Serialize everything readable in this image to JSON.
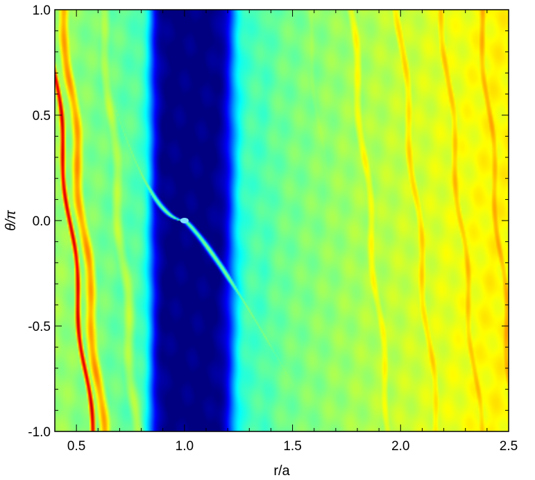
{
  "chart_data": {
    "type": "heatmap",
    "title": "",
    "xlabel": "r/a",
    "ylabel": "θ/π",
    "xlim": [
      0.4,
      2.5
    ],
    "ylim": [
      -1.0,
      1.0
    ],
    "x_ticks": [
      0.5,
      1.0,
      1.5,
      2.0,
      2.5
    ],
    "x_tick_labels": [
      "0.5",
      "1.0",
      "1.5",
      "2.0",
      "2.5"
    ],
    "y_ticks": [
      -1.0,
      -0.5,
      0.0,
      0.5,
      1.0
    ],
    "y_tick_labels": [
      "-1.0",
      "-0.5",
      "0.0",
      "0.5",
      "1.0"
    ],
    "colormap": "jet",
    "colors": {
      "min": "#00008c",
      "low": "#0a46e6",
      "mid": "#30d2f0",
      "high": "#b4f046",
      "max": "#e61e00"
    },
    "gap": {
      "r_inner": 0.85,
      "r_outer": 1.22,
      "level": 0.0
    },
    "planet": {
      "r": 1.0,
      "theta": 0.0
    },
    "background_level": 0.45,
    "features": [
      {
        "name": "inner-density-ridge",
        "r_at_theta0": 0.47,
        "dr_dtheta": -0.1,
        "level": 0.92
      },
      {
        "name": "inner-ridge-2",
        "r_at_theta0": 0.53,
        "dr_dtheta": -0.09,
        "level": 0.72
      },
      {
        "name": "inner-ridge-3",
        "r_at_theta0": 0.7,
        "dr_dtheta": -0.08,
        "level": 0.55
      },
      {
        "name": "outer-ridge-1",
        "r_at_theta0": 1.67,
        "dr_dtheta": -0.1,
        "level": 0.52
      },
      {
        "name": "outer-ridge-2",
        "r_at_theta0": 1.86,
        "dr_dtheta": -0.09,
        "level": 0.62
      },
      {
        "name": "outer-ridge-3",
        "r_at_theta0": 2.08,
        "dr_dtheta": -0.09,
        "level": 0.66
      },
      {
        "name": "outer-ridge-4",
        "r_at_theta0": 2.28,
        "dr_dtheta": -0.09,
        "level": 0.68
      },
      {
        "name": "outer-ridge-5",
        "r_at_theta0": 2.45,
        "dr_dtheta": -0.08,
        "level": 0.7
      }
    ],
    "spiral_wakes": [
      {
        "name": "inner-wake",
        "side": "inner",
        "level": 0.5
      },
      {
        "name": "outer-wake",
        "side": "outer",
        "level": 0.5
      }
    ]
  }
}
